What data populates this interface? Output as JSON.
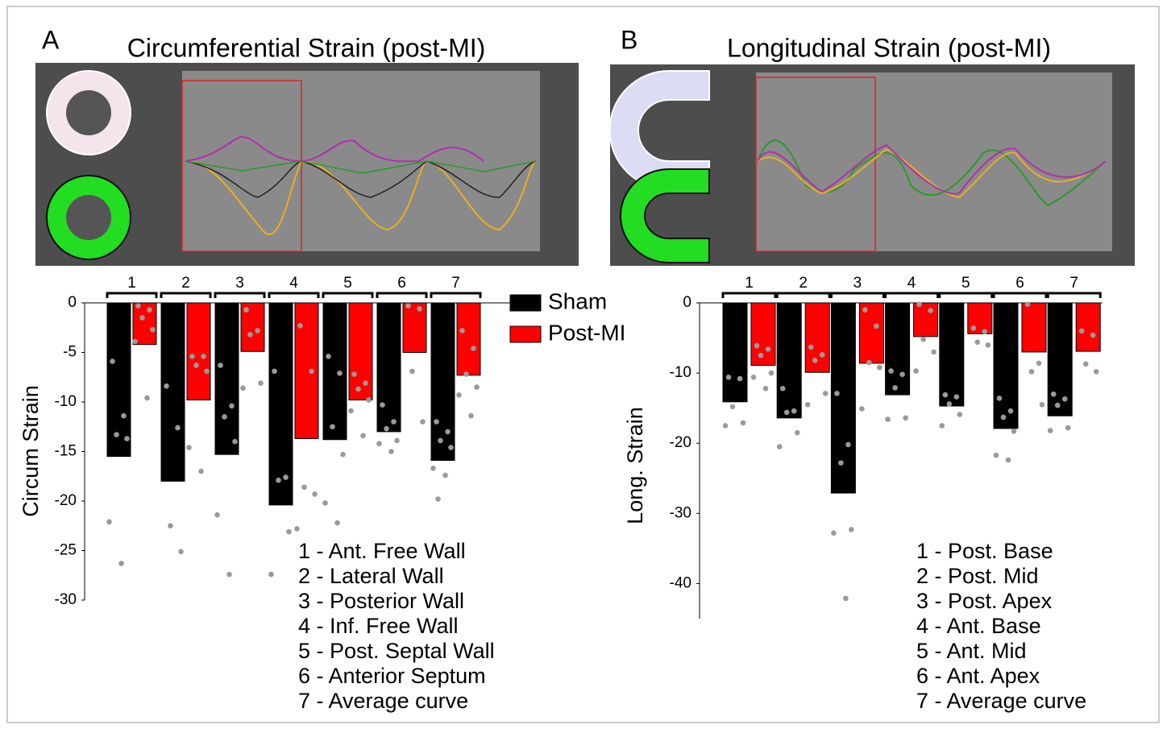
{
  "chart_data": [
    {
      "type": "bar",
      "panel": "A",
      "title": "Circumferential Strain (post-MI)",
      "ylabel": "Circum Strain",
      "categories": [
        "1",
        "2",
        "3",
        "4",
        "5",
        "6",
        "7"
      ],
      "series": [
        {
          "name": "Sham",
          "color": "#000000",
          "values": [
            -15.5,
            -18.0,
            -15.3,
            -20.4,
            -13.8,
            -13.0,
            -15.9
          ],
          "points": [
            [
              -5.9,
              -11.4,
              -13.3,
              -13.7,
              -22.1,
              -26.3
            ],
            [
              -8.4,
              -12.6,
              -22.5,
              -25.1
            ],
            [
              -6.3,
              -10.4,
              -11.5,
              -14.0,
              -21.4,
              -27.4
            ],
            [
              -6.9,
              -17.6,
              -17.9,
              -23.1,
              -27.4
            ],
            [
              -5.4,
              -7.1,
              -12.5,
              -15.3,
              -20.2,
              -22.2
            ],
            [
              -10.3,
              -12.0,
              -12.7,
              -13.9,
              -14.2,
              -15.0
            ],
            [
              -12.0,
              -13.0,
              -13.9,
              -14.6,
              -16.7,
              -17.4,
              -19.8
            ]
          ]
        },
        {
          "name": "Post-MI",
          "color": "#ff0000",
          "values": [
            -4.2,
            -9.8,
            -4.9,
            -13.7,
            -9.8,
            -5.0,
            -7.3
          ],
          "points": [
            [
              -0.3,
              -0.7,
              -1.5,
              -2.7,
              -3.9,
              -9.6
            ],
            [
              -5.4,
              -5.4,
              -6.3,
              -6.9,
              -14.6,
              -17.0
            ],
            [
              -0.7,
              -2.8,
              -3.2,
              -8.1,
              -8.6
            ],
            [
              -2.3,
              -6.9,
              -18.6,
              -19.3,
              -22.8
            ],
            [
              -7.2,
              -8.1,
              -8.7,
              -9.8,
              -10.9,
              -13.4
            ],
            [
              -0.3,
              -0.6,
              -6.9,
              -12.0
            ],
            [
              -2.8,
              -4.6,
              -7.2,
              -8.5,
              -9.3,
              -11.4
            ]
          ]
        }
      ],
      "ylim": [
        -30,
        0
      ],
      "yticks": [
        0,
        -5,
        -10,
        -15,
        -20,
        -25,
        -30
      ],
      "legend": "upper right",
      "annotations": [
        "1 - Ant. Free Wall",
        "2 - Lateral Wall",
        "3 - Posterior Wall",
        "4 - Inf. Free Wall",
        "5 - Post. Septal Wall",
        "6 - Anterior Septum",
        "7 - Average curve"
      ]
    },
    {
      "type": "bar",
      "panel": "B",
      "title": "Longitudinal Strain  (post-MI)",
      "ylabel": "Long.  Strain",
      "categories": [
        "1",
        "2",
        "3",
        "4",
        "5",
        "6",
        "7"
      ],
      "series": [
        {
          "color": "#000000",
          "values": [
            -14.1,
            -16.4,
            -27.1,
            -13.1,
            -14.7,
            -17.9,
            -16.1
          ],
          "points": [
            [
              -10.6,
              -10.8,
              -14.8,
              -17.1,
              -17.5
            ],
            [
              -12.2,
              -15.4,
              -15.6,
              -18.5,
              -20.5
            ],
            [
              -12.9,
              -20.2,
              -22.8,
              -32.3,
              -32.8,
              -42.1
            ],
            [
              -9.7,
              -10.2,
              -12.1,
              -16.4,
              -16.6
            ],
            [
              -13.1,
              -13.4,
              -14.4,
              -15.9,
              -17.5
            ],
            [
              -13.6,
              -15.4,
              -16.3,
              -18.3,
              -21.7,
              -22.4
            ],
            [
              -13.0,
              -13.7,
              -14.6,
              -17.8,
              -18.2
            ]
          ]
        },
        {
          "color": "#ff0000",
          "values": [
            -8.9,
            -9.9,
            -8.6,
            -4.8,
            -4.4,
            -7.0,
            -6.9
          ],
          "points": [
            [
              -6.1,
              -6.6,
              -7.5,
              -10.0,
              -10.6,
              -12.2
            ],
            [
              -6.3,
              -7.4,
              -8.2,
              -12.9,
              -14.5
            ],
            [
              -1.0,
              -3.3,
              -8.5,
              -9.2,
              -15.1
            ],
            [
              -0.2,
              -1.1,
              -5.2,
              -7.0,
              -9.7
            ],
            [
              -3.6,
              -4.1,
              -5.6,
              -6.0
            ],
            [
              -0.2,
              -8.6,
              -9.8,
              -14.5
            ],
            [
              -4.0,
              -4.6,
              -8.7,
              -9.8
            ]
          ]
        }
      ],
      "ylim": [
        -45,
        0
      ],
      "yticks": [
        0,
        -10,
        -20,
        -30,
        -40
      ],
      "annotations": [
        "1 - Post. Base",
        "2 - Post. Mid",
        "3 - Post. Apex",
        "4 - Ant. Base",
        "5 - Ant. Mid",
        "6 - Ant. Apex",
        "7 - Average curve"
      ]
    }
  ]
}
